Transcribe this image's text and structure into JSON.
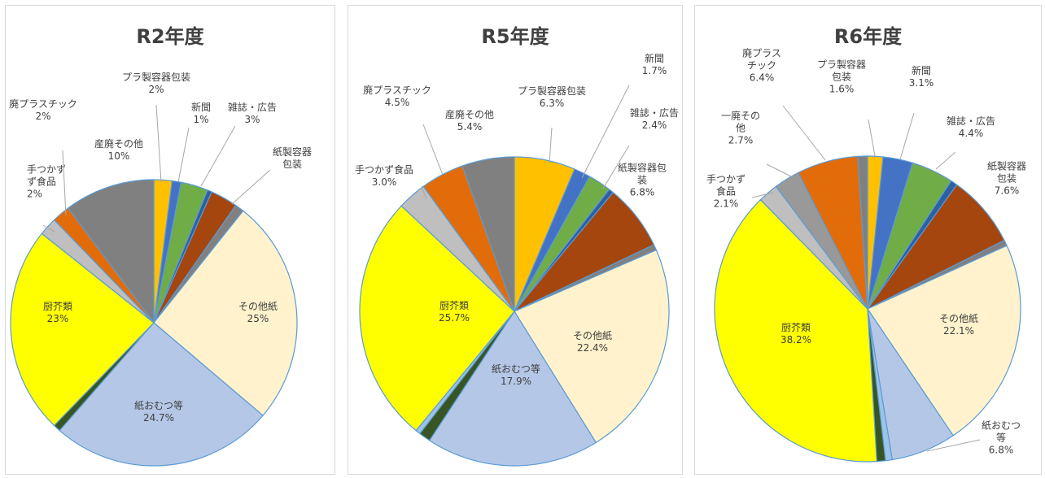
{
  "colors": {
    "プラ製容器包装": "#ffc000",
    "新聞": "#4472c4",
    "雑誌・広告": "#70ad47",
    "small_blue": "#2e5fa0",
    "紙製容器包装": "#a5460f",
    "small_gray": "#808080",
    "その他紙": "#fff2cc",
    "紙おむつ等": "#b4c7e7",
    "small_lightblue": "#9dc3e6",
    "small_darkgreen": "#375623",
    "厨芥類": "#ffff00",
    "手つかず食品": "#bfbfbf",
    "廃プラスチック": "#e36c0a",
    "産廃その他": "#808080"
  },
  "chart_data": [
    {
      "type": "pie",
      "title": "R2年度",
      "slices": [
        {
          "key": "プラ製容器包装",
          "value": 2,
          "label": [
            "プラ製容器包装",
            "2%"
          ]
        },
        {
          "key": "新聞",
          "value": 1,
          "label": [
            "新聞",
            "1%"
          ]
        },
        {
          "key": "雑誌・広告",
          "value": 3,
          "label": [
            "雑誌・広告",
            "3%"
          ]
        },
        {
          "key": "small_blue",
          "value": 0.5,
          "label": []
        },
        {
          "key": "紙製容器包装",
          "value": 3,
          "label": [
            "紙製容器",
            "包装"
          ]
        },
        {
          "key": "small_gray",
          "value": 1,
          "label": []
        },
        {
          "key": "その他紙",
          "value": 25,
          "label": [
            "その他紙",
            "25%"
          ]
        },
        {
          "key": "紙おむつ等",
          "value": 24.7,
          "label": [
            "紙おむつ等",
            "24.7%"
          ]
        },
        {
          "key": "small_darkgreen",
          "value": 0.8,
          "label": []
        },
        {
          "key": "厨芥類",
          "value": 23,
          "label": [
            "厨芥類",
            "23%"
          ]
        },
        {
          "key": "手つかず食品",
          "value": 2,
          "label": [
            "手つかず",
            "ず食品",
            "2%"
          ]
        },
        {
          "key": "廃プラスチック",
          "value": 2,
          "label": [
            "廃プラスチック",
            "2%"
          ]
        },
        {
          "key": "産廃その他",
          "value": 10,
          "label": [
            "産廃その他",
            "10%"
          ]
        }
      ]
    },
    {
      "type": "pie",
      "title": "R5年度",
      "slices": [
        {
          "key": "プラ製容器包装",
          "value": 6.3,
          "label": [
            "プラ製容器包装",
            "6.3%"
          ]
        },
        {
          "key": "新聞",
          "value": 1.7,
          "label": [
            "新聞",
            "1.7%"
          ]
        },
        {
          "key": "雑誌・広告",
          "value": 2.4,
          "label": [
            "雑誌・広告",
            "2.4%"
          ]
        },
        {
          "key": "small_blue",
          "value": 0.5,
          "label": []
        },
        {
          "key": "紙製容器包装",
          "value": 6.8,
          "label": [
            "紙製容器包",
            "装",
            "6.8%"
          ]
        },
        {
          "key": "small_gray",
          "value": 0.6,
          "label": []
        },
        {
          "key": "その他紙",
          "value": 22.4,
          "label": [
            "その他紙",
            "22.4%"
          ]
        },
        {
          "key": "紙おむつ等",
          "value": 17.9,
          "label": [
            "紙おむつ等",
            "17.9%"
          ]
        },
        {
          "key": "small_darkgreen",
          "value": 1.2,
          "label": []
        },
        {
          "key": "small_lightblue",
          "value": 0.5,
          "label": []
        },
        {
          "key": "厨芥類",
          "value": 25.7,
          "label": [
            "厨芥類",
            "25.7%"
          ]
        },
        {
          "key": "手つかず食品",
          "value": 3.0,
          "label": [
            "手つかず食品",
            "3.0%"
          ]
        },
        {
          "key": "廃プラスチック",
          "value": 4.5,
          "label": [
            "廃プラスチック",
            "4.5%"
          ]
        },
        {
          "key": "産廃その他",
          "value": 5.4,
          "label": [
            "産廃その他",
            "5.4%"
          ]
        }
      ]
    },
    {
      "type": "pie",
      "title": "R6年度",
      "slices": [
        {
          "key": "プラ製容器包装",
          "value": 1.6,
          "label": [
            "プラ製容器",
            "包装",
            "1.6%"
          ]
        },
        {
          "key": "新聞",
          "value": 3.1,
          "label": [
            "新聞",
            "3.1%"
          ]
        },
        {
          "key": "雑誌・広告",
          "value": 4.4,
          "label": [
            "雑誌・広告",
            "4.4%"
          ]
        },
        {
          "key": "small_blue",
          "value": 0.7,
          "label": []
        },
        {
          "key": "紙製容器包装",
          "value": 7.6,
          "label": [
            "紙製容器",
            "包装",
            "7.6%"
          ]
        },
        {
          "key": "small_gray",
          "value": 0.6,
          "label": []
        },
        {
          "key": "その他紙",
          "value": 22.1,
          "label": [
            "その他紙",
            "22.1%"
          ]
        },
        {
          "key": "紙おむつ等",
          "value": 6.8,
          "label": [
            "紙おむつ",
            "等",
            "6.8%"
          ]
        },
        {
          "key": "small_lightblue",
          "value": 0.7,
          "label": []
        },
        {
          "key": "small_darkgreen",
          "value": 0.9,
          "label": []
        },
        {
          "key": "厨芥類",
          "value": 38.2,
          "label": [
            "厨芥類",
            "38.2%"
          ]
        },
        {
          "key": "手つかず食品",
          "value": 2.1,
          "label": [
            "手つかず",
            "食品",
            "2.1%"
          ]
        },
        {
          "key": "一廃その他",
          "value": 2.7,
          "label": [
            "一廃その",
            "他",
            "2.7%"
          ]
        },
        {
          "key": "廃プラスチック",
          "value": 6.4,
          "label": [
            "廃プラス",
            "チック",
            "6.4%"
          ]
        },
        {
          "key": "産廃その他",
          "value": 1.0,
          "label": []
        }
      ]
    }
  ]
}
